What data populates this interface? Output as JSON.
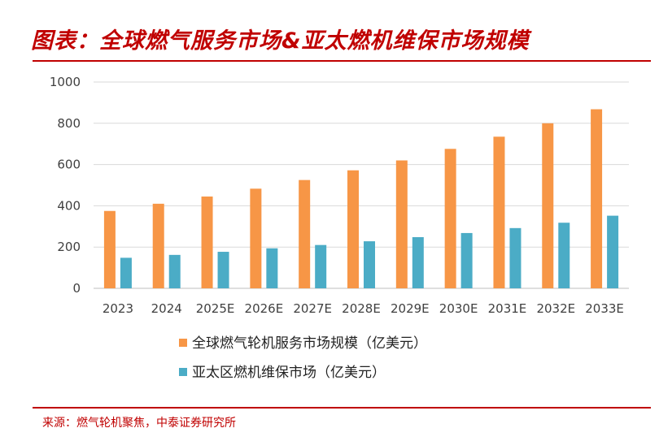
{
  "header": {
    "title": "图表：全球燃气服务市场&亚太燃机维保市场规模"
  },
  "footer": {
    "source": "来源：燃气轮机聚焦，中泰证券研究所"
  },
  "chart_data": {
    "type": "bar",
    "title": "图表：全球燃气服务市场&亚太燃机维保市场规模",
    "xlabel": "",
    "ylabel": "",
    "ylim": [
      0,
      1000
    ],
    "yticks": [
      0,
      200,
      400,
      600,
      800,
      1000
    ],
    "grid": true,
    "legend_position": "bottom",
    "categories": [
      "2023",
      "2024",
      "2025E",
      "2026E",
      "2027E",
      "2028E",
      "2029E",
      "2030E",
      "2031E",
      "2032E",
      "2033E"
    ],
    "series": [
      {
        "name": "全球燃气轮机服务市场规模（亿美元）",
        "color": "#f79646",
        "values": [
          375,
          410,
          445,
          483,
          525,
          572,
          620,
          676,
          735,
          800,
          868
        ]
      },
      {
        "name": "亚太区燃机维保市场（亿美元）",
        "color": "#4bacc6",
        "values": [
          148,
          162,
          177,
          194,
          210,
          228,
          248,
          268,
          292,
          318,
          352
        ]
      }
    ]
  }
}
